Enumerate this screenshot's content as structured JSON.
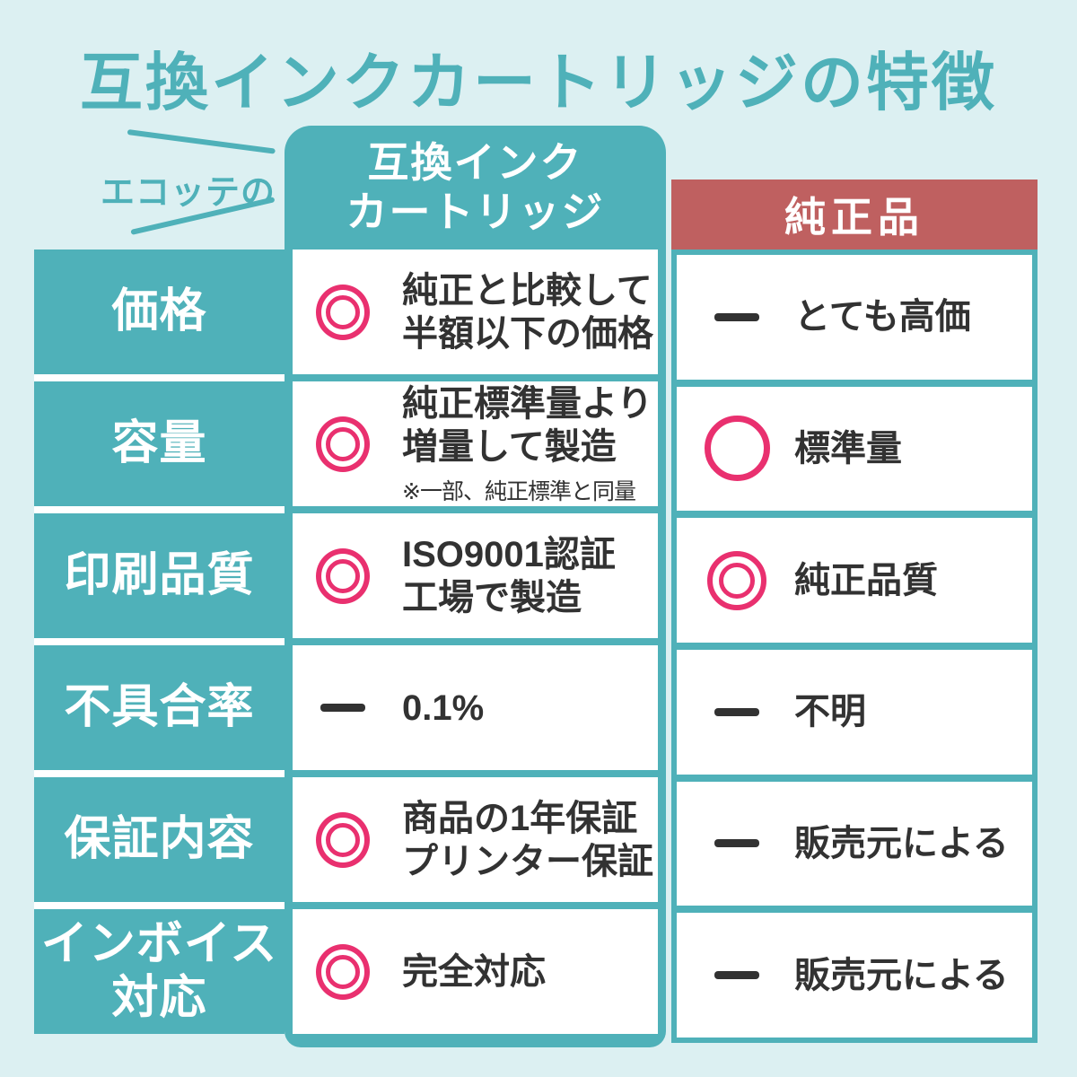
{
  "colors": {
    "teal": "#4FB1B9",
    "salmon": "#BF6060",
    "pink": "#E9306F",
    "dark_text": "#323232",
    "background": "#DCF0F2"
  },
  "title": "互換インクカートリッジの特徴",
  "header": {
    "brand_label": "エコッテの",
    "compat_column_line1": "互換インク",
    "compat_column_line2": "カートリッジ",
    "genuine_column": "純正品"
  },
  "table": {
    "rows": [
      {
        "label_lines": [
          "価格"
        ],
        "compat": {
          "symbol": "double-circle",
          "lines": [
            "純正と比較して",
            "半額以下の価格"
          ]
        },
        "genuine": {
          "symbol": "dash",
          "text": "とても高価"
        }
      },
      {
        "label_lines": [
          "容量"
        ],
        "compat": {
          "symbol": "double-circle",
          "lines": [
            "純正標準量より",
            "増量して製造"
          ],
          "note": "※一部、純正標準と同量"
        },
        "genuine": {
          "symbol": "circle",
          "text": "標準量"
        }
      },
      {
        "label_lines": [
          "印刷品質"
        ],
        "compat": {
          "symbol": "double-circle",
          "lines": [
            "ISO9001認証",
            "工場で製造"
          ]
        },
        "genuine": {
          "symbol": "double-circle",
          "text": "純正品質"
        }
      },
      {
        "label_lines": [
          "不具合率"
        ],
        "compat": {
          "symbol": "dash",
          "lines": [
            "0.1%"
          ]
        },
        "genuine": {
          "symbol": "dash",
          "text": "不明"
        }
      },
      {
        "label_lines": [
          "保証内容"
        ],
        "compat": {
          "symbol": "double-circle",
          "lines": [
            "商品の1年保証",
            "プリンター保証"
          ]
        },
        "genuine": {
          "symbol": "dash",
          "text": "販売元による"
        }
      },
      {
        "label_lines": [
          "インボイス",
          "対応"
        ],
        "compat": {
          "symbol": "double-circle",
          "lines": [
            "完全対応"
          ]
        },
        "genuine": {
          "symbol": "dash",
          "text": "販売元による"
        }
      }
    ]
  }
}
